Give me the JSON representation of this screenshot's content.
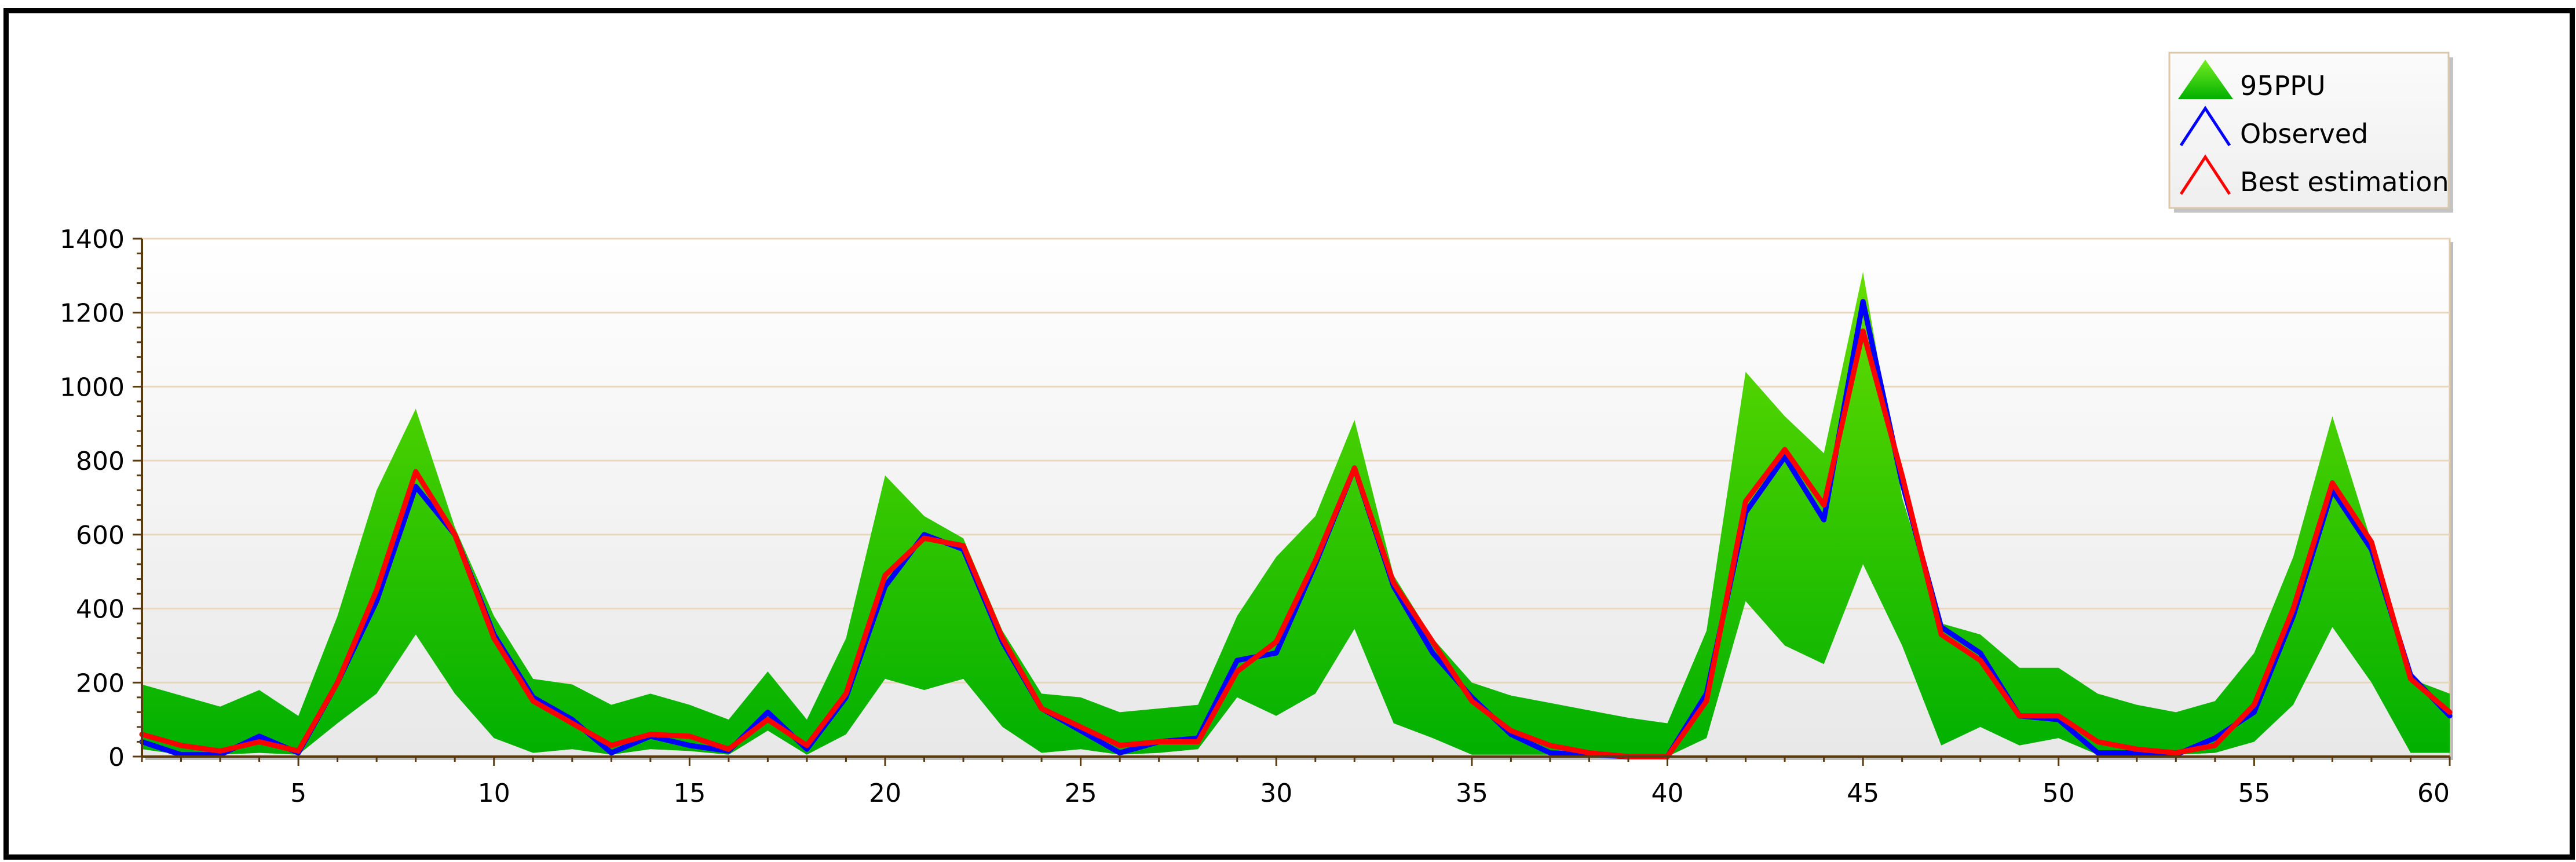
{
  "chart_data": {
    "type": "area",
    "x": [
      1,
      2,
      3,
      4,
      5,
      6,
      7,
      8,
      9,
      10,
      11,
      12,
      13,
      14,
      15,
      16,
      17,
      18,
      19,
      20,
      21,
      22,
      23,
      24,
      25,
      26,
      27,
      28,
      29,
      30,
      31,
      32,
      33,
      34,
      35,
      36,
      37,
      38,
      39,
      40,
      41,
      42,
      43,
      44,
      45,
      46,
      47,
      48,
      49,
      50,
      51,
      52,
      53,
      54,
      55,
      56,
      57,
      58,
      59,
      60
    ],
    "xlim": [
      1,
      60
    ],
    "ylim": [
      0,
      1400
    ],
    "xticks": [
      5,
      10,
      15,
      20,
      25,
      30,
      35,
      40,
      45,
      50,
      55,
      60
    ],
    "yticks": [
      0,
      200,
      400,
      600,
      800,
      1000,
      1200,
      1400
    ],
    "x_tick_labels": [
      "5",
      "10",
      "15",
      "20",
      "25",
      "30",
      "35",
      "40",
      "45",
      "50",
      "55",
      "60"
    ],
    "y_tick_labels": [
      "0",
      "200",
      "400",
      "600",
      "800",
      "1000",
      "1200",
      "1400"
    ],
    "grid": "horizontal",
    "legend_position": "top-right",
    "band": {
      "name": "95PPU",
      "color_top": "#66dd00",
      "color_bottom": "#00b000",
      "upper": [
        195,
        165,
        135,
        180,
        110,
        380,
        720,
        940,
        620,
        380,
        210,
        195,
        140,
        170,
        140,
        100,
        230,
        100,
        320,
        760,
        650,
        590,
        340,
        170,
        160,
        120,
        130,
        140,
        380,
        540,
        650,
        910,
        490,
        320,
        200,
        165,
        145,
        125,
        105,
        90,
        340,
        1040,
        920,
        820,
        1310,
        700,
        360,
        330,
        240,
        240,
        170,
        140,
        120,
        150,
        280,
        540,
        920,
        580,
        210,
        170
      ],
      "lower": [
        20,
        5,
        5,
        10,
        5,
        90,
        170,
        330,
        170,
        50,
        10,
        20,
        5,
        20,
        15,
        5,
        70,
        5,
        60,
        210,
        180,
        210,
        80,
        10,
        20,
        5,
        10,
        20,
        160,
        110,
        170,
        345,
        90,
        50,
        5,
        5,
        5,
        5,
        5,
        0,
        50,
        420,
        300,
        250,
        520,
        300,
        30,
        80,
        30,
        50,
        5,
        5,
        5,
        10,
        40,
        140,
        350,
        200,
        10,
        10
      ]
    },
    "series": [
      {
        "name": "Observed",
        "color": "#0000ff",
        "values": [
          40,
          5,
          5,
          55,
          10,
          200,
          420,
          730,
          600,
          330,
          160,
          100,
          10,
          55,
          30,
          15,
          120,
          20,
          160,
          460,
          600,
          560,
          310,
          130,
          70,
          10,
          40,
          50,
          260,
          280,
          520,
          780,
          460,
          280,
          160,
          60,
          10,
          5,
          0,
          0,
          170,
          660,
          810,
          640,
          1230,
          740,
          350,
          280,
          110,
          100,
          10,
          10,
          5,
          50,
          120,
          380,
          720,
          560,
          220,
          110
        ]
      },
      {
        "name": "Best estimation",
        "color": "#ff0000",
        "values": [
          60,
          30,
          15,
          40,
          15,
          200,
          450,
          770,
          600,
          320,
          150,
          90,
          30,
          60,
          55,
          20,
          100,
          30,
          170,
          490,
          590,
          570,
          320,
          130,
          80,
          30,
          40,
          40,
          230,
          310,
          530,
          780,
          470,
          310,
          150,
          70,
          30,
          10,
          0,
          0,
          150,
          690,
          830,
          680,
          1150,
          760,
          330,
          260,
          110,
          110,
          40,
          20,
          10,
          30,
          140,
          400,
          740,
          580,
          210,
          120
        ]
      }
    ]
  }
}
